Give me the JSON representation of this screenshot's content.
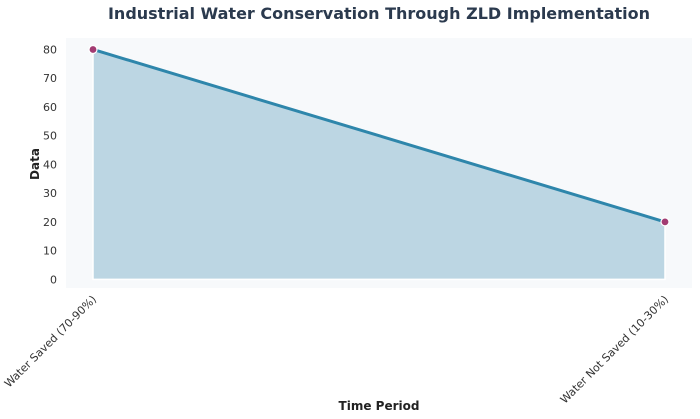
{
  "chart_data": {
    "type": "area",
    "title": "Industrial Water Conservation Through ZLD Implementation",
    "xlabel": "Time Period",
    "ylabel": "Data",
    "categories": [
      "Water Saved (70-90%)",
      "Water Not Saved (10-30%)"
    ],
    "values": [
      80,
      20
    ],
    "ylim": [
      -3,
      84
    ],
    "yticks": [
      0,
      10,
      20,
      30,
      40,
      50,
      60,
      70,
      80
    ],
    "grid": false,
    "legend": "none",
    "colors": {
      "line": "#2e86ab",
      "fill": "#bcd6e3",
      "marker": "#a23b72",
      "plot_bg": "#f7f9fb"
    }
  }
}
